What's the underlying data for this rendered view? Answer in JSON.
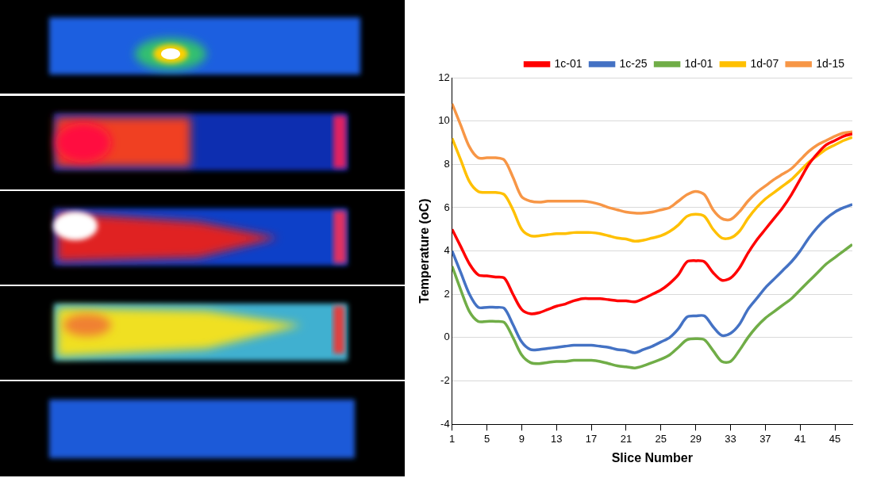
{
  "chart_data": {
    "type": "line",
    "x_label": "Slice Number",
    "y_label": "Temperature (oC)",
    "x": [
      1,
      2,
      3,
      4,
      5,
      6,
      7,
      8,
      9,
      10,
      11,
      12,
      13,
      14,
      15,
      16,
      17,
      18,
      19,
      20,
      21,
      22,
      23,
      24,
      25,
      26,
      27,
      28,
      29,
      30,
      31,
      32,
      33,
      34,
      35,
      36,
      37,
      38,
      39,
      40,
      41,
      42,
      43,
      44,
      45,
      46,
      47
    ],
    "xlim": [
      1,
      47
    ],
    "xticks": [
      1,
      5,
      9,
      13,
      17,
      21,
      25,
      29,
      33,
      37,
      41,
      45
    ],
    "ylim": [
      -4,
      12
    ],
    "yticks": [
      -4,
      -2,
      0,
      2,
      4,
      6,
      8,
      10,
      12
    ],
    "grid": true,
    "legend": "top",
    "series": [
      {
        "name": "1c-01",
        "color": "#ff0000",
        "values": [
          5.0,
          4.2,
          3.4,
          2.9,
          2.85,
          2.8,
          2.75,
          2.0,
          1.3,
          1.1,
          1.15,
          1.3,
          1.45,
          1.55,
          1.7,
          1.8,
          1.8,
          1.8,
          1.75,
          1.7,
          1.7,
          1.65,
          1.8,
          2.0,
          2.2,
          2.5,
          2.9,
          3.5,
          3.55,
          3.5,
          3.0,
          2.65,
          2.75,
          3.2,
          3.9,
          4.5,
          5.0,
          5.5,
          6.0,
          6.6,
          7.3,
          8.0,
          8.5,
          8.9,
          9.1,
          9.3,
          9.4
        ]
      },
      {
        "name": "1c-25",
        "color": "#4472c4",
        "values": [
          4.0,
          3.0,
          2.0,
          1.4,
          1.4,
          1.4,
          1.35,
          0.6,
          -0.2,
          -0.55,
          -0.55,
          -0.5,
          -0.45,
          -0.4,
          -0.35,
          -0.35,
          -0.35,
          -0.4,
          -0.45,
          -0.55,
          -0.6,
          -0.7,
          -0.55,
          -0.4,
          -0.2,
          0.0,
          0.4,
          0.95,
          1.0,
          1.0,
          0.5,
          0.1,
          0.2,
          0.6,
          1.3,
          1.8,
          2.3,
          2.7,
          3.1,
          3.5,
          4.0,
          4.6,
          5.1,
          5.5,
          5.8,
          6.0,
          6.15
        ]
      },
      {
        "name": "1d-01",
        "color": "#70ad47",
        "values": [
          3.3,
          2.2,
          1.2,
          0.75,
          0.75,
          0.75,
          0.7,
          0.0,
          -0.8,
          -1.15,
          -1.2,
          -1.15,
          -1.1,
          -1.1,
          -1.05,
          -1.05,
          -1.05,
          -1.1,
          -1.2,
          -1.3,
          -1.35,
          -1.4,
          -1.3,
          -1.15,
          -1.0,
          -0.8,
          -0.45,
          -0.1,
          -0.05,
          -0.1,
          -0.6,
          -1.1,
          -1.1,
          -0.6,
          0.0,
          0.5,
          0.9,
          1.2,
          1.5,
          1.8,
          2.2,
          2.6,
          3.0,
          3.4,
          3.7,
          4.0,
          4.3
        ]
      },
      {
        "name": "1d-07",
        "color": "#ffc000",
        "values": [
          9.2,
          8.2,
          7.2,
          6.75,
          6.7,
          6.7,
          6.6,
          5.9,
          5.0,
          4.7,
          4.7,
          4.75,
          4.8,
          4.8,
          4.85,
          4.85,
          4.85,
          4.8,
          4.7,
          4.6,
          4.55,
          4.45,
          4.5,
          4.6,
          4.7,
          4.9,
          5.2,
          5.6,
          5.7,
          5.6,
          5.0,
          4.6,
          4.6,
          4.9,
          5.5,
          6.0,
          6.4,
          6.7,
          7.0,
          7.3,
          7.7,
          8.1,
          8.4,
          8.7,
          8.9,
          9.1,
          9.25
        ]
      },
      {
        "name": "1d-15",
        "color": "#f79646",
        "values": [
          10.8,
          9.8,
          8.8,
          8.3,
          8.3,
          8.3,
          8.2,
          7.4,
          6.5,
          6.3,
          6.25,
          6.3,
          6.3,
          6.3,
          6.3,
          6.3,
          6.25,
          6.15,
          6.0,
          5.9,
          5.8,
          5.75,
          5.75,
          5.8,
          5.9,
          6.0,
          6.3,
          6.6,
          6.75,
          6.6,
          5.9,
          5.5,
          5.45,
          5.8,
          6.3,
          6.7,
          7.0,
          7.3,
          7.55,
          7.8,
          8.2,
          8.6,
          8.9,
          9.1,
          9.3,
          9.45,
          9.5
        ]
      }
    ]
  }
}
